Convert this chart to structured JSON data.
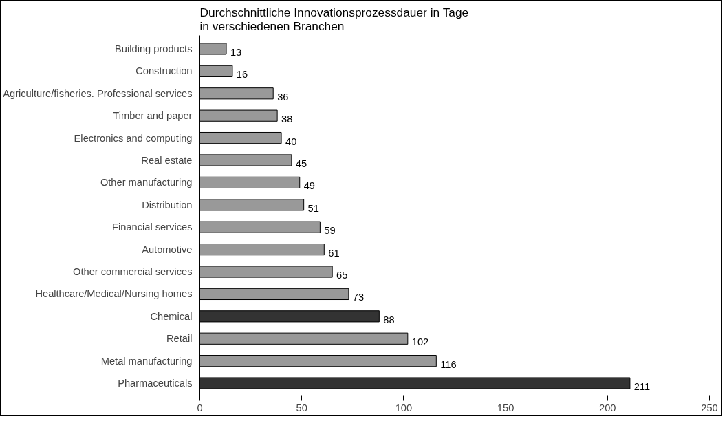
{
  "chart_data": {
    "type": "bar",
    "orientation": "horizontal",
    "title": "Durchschnittliche Innovationsprozessdauer in Tage\nin verschiedenen Branchen",
    "categories": [
      "Building products",
      "Construction",
      "Agriculture/fisheries. Professional services",
      "Timber and paper",
      "Electronics and computing",
      "Real estate",
      "Other manufacturing",
      "Distribution",
      "Financial services",
      "Automotive",
      "Other commercial services",
      "Healthcare/Medical/Nursing homes",
      "Chemical",
      "Retail",
      "Metal manufacturing",
      "Pharmaceuticals"
    ],
    "values": [
      13,
      16,
      36,
      38,
      40,
      45,
      49,
      51,
      59,
      61,
      65,
      73,
      88,
      102,
      116,
      211
    ],
    "colors": [
      "#999999",
      "#999999",
      "#999999",
      "#999999",
      "#999999",
      "#999999",
      "#999999",
      "#999999",
      "#999999",
      "#999999",
      "#999999",
      "#999999",
      "#333333",
      "#999999",
      "#999999",
      "#333333"
    ],
    "xlim": [
      0,
      250
    ],
    "xticks": [
      0,
      50,
      100,
      150,
      200,
      250
    ],
    "grid": false,
    "data_labels": true
  }
}
